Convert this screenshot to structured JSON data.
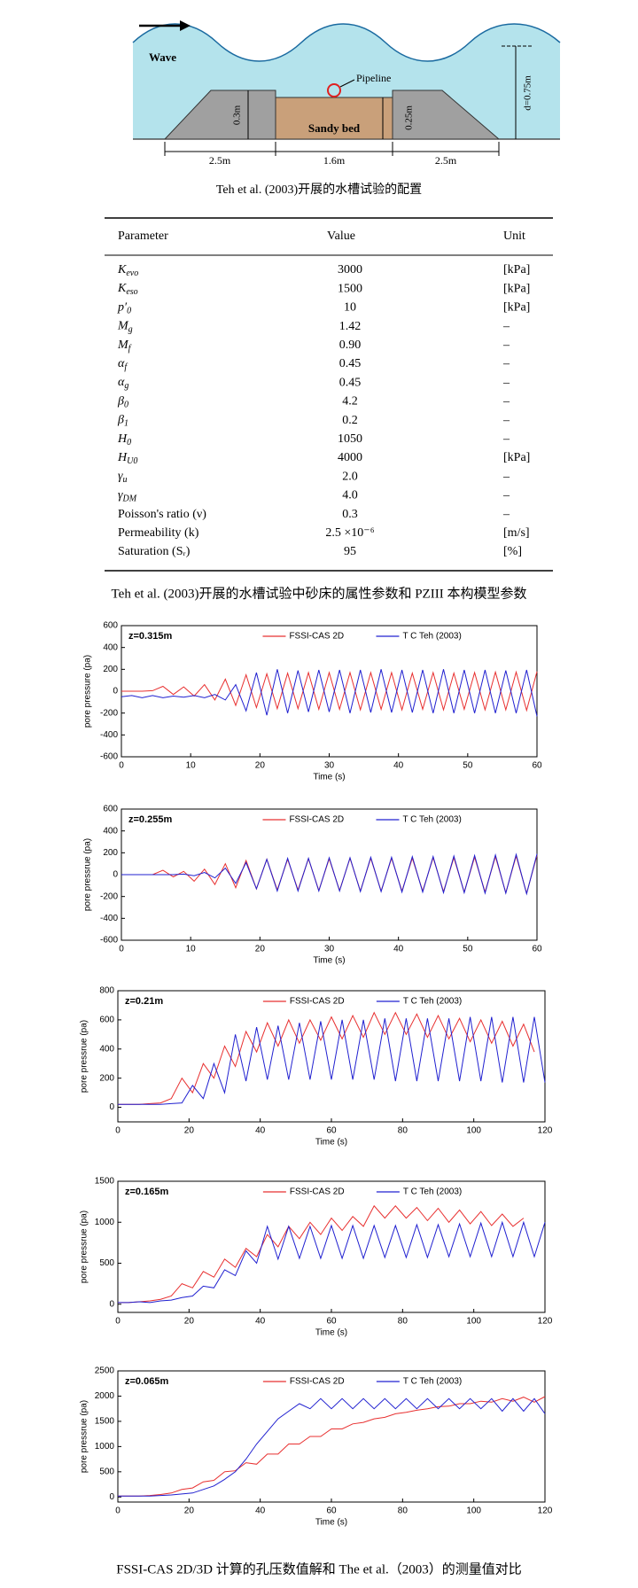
{
  "figure1": {
    "labels": {
      "wave": "Wave",
      "pipeline": "Pipeline",
      "berm_height": "0.3m",
      "bed": "Sandy bed",
      "bed_depth": "0.25m",
      "depth": "d=0.75m",
      "left_width": "2.5m",
      "bed_width": "1.6m",
      "right_width": "2.5m"
    },
    "caption": "Teh et al. (2003)开展的水槽试验的配置"
  },
  "table": {
    "header": [
      "Parameter",
      "Value",
      "Unit"
    ],
    "rows": [
      {
        "symbol": "K",
        "sub": "evo",
        "value": "3000",
        "unit": "[kPa]"
      },
      {
        "symbol": "K",
        "sub": "eso",
        "value": "1500",
        "unit": "[kPa]"
      },
      {
        "symbol": "p′",
        "sub": "0",
        "value": "10",
        "unit": "[kPa]"
      },
      {
        "symbol": "M",
        "sub": "g",
        "value": "1.42",
        "unit": "–"
      },
      {
        "symbol": "M",
        "sub": "f",
        "value": "0.90",
        "unit": "–"
      },
      {
        "symbol": "α",
        "sub": "f",
        "value": "0.45",
        "unit": "–"
      },
      {
        "symbol": "α",
        "sub": "g",
        "value": "0.45",
        "unit": "–"
      },
      {
        "symbol": "β",
        "sub": "0",
        "value": "4.2",
        "unit": "–"
      },
      {
        "symbol": "β",
        "sub": "1",
        "value": "0.2",
        "unit": "–"
      },
      {
        "symbol": "H",
        "sub": "0",
        "value": "1050",
        "unit": "–"
      },
      {
        "symbol": "H",
        "sub": "U0",
        "value": "4000",
        "unit": "[kPa]"
      },
      {
        "symbol": "γ",
        "sub": "u",
        "value": "2.0",
        "unit": "–"
      },
      {
        "symbol": "γ",
        "sub": "DM",
        "value": "4.0",
        "unit": "–"
      },
      {
        "name": "Poisson's ratio (ν)",
        "value": "0.3",
        "unit": "–"
      },
      {
        "name": "Permeability (k)",
        "value": "2.5 ×10⁻⁶",
        "unit": "[m/s]"
      },
      {
        "name": "Saturation (Sᵣ)",
        "value": "95",
        "unit": "[%]"
      }
    ],
    "caption": "Teh et al. (2003)开展的水槽试验中砂床的属性参数和 PZIII 本构模型参数"
  },
  "chart_data": [
    {
      "type": "line",
      "annotation": "z=0.315m",
      "xlabel": "Time  (s)",
      "ylabel": "pore pressure (pa)",
      "x": [
        0,
        1.5,
        3,
        4.5,
        6,
        7.5,
        9,
        10.5,
        12,
        13.5,
        15,
        16.5,
        18,
        19.5,
        21,
        22.5,
        24,
        25.5,
        27,
        28.5,
        30,
        31.5,
        33,
        34.5,
        36,
        37.5,
        39,
        40.5,
        42,
        43.5,
        45,
        46.5,
        48,
        49.5,
        51,
        52.5,
        54,
        55.5,
        57,
        58.5,
        60
      ],
      "series": [
        {
          "name": "FSSI-CAS 2D",
          "color": "#e83030",
          "values": [
            0,
            0,
            0,
            5,
            45,
            -30,
            40,
            -45,
            60,
            -80,
            110,
            -130,
            150,
            -150,
            160,
            -160,
            165,
            -160,
            170,
            -165,
            170,
            -165,
            170,
            -170,
            170,
            -165,
            170,
            -170,
            165,
            -165,
            170,
            -170,
            165,
            -165,
            170,
            -170,
            175,
            -170,
            175,
            -175,
            180
          ]
        },
        {
          "name": "T C Teh (2003)",
          "color": "#2020d0",
          "values": [
            -50,
            -40,
            -60,
            -40,
            -60,
            -45,
            -55,
            -40,
            -60,
            -30,
            -80,
            60,
            -180,
            170,
            -220,
            200,
            -200,
            190,
            -190,
            195,
            -190,
            195,
            -200,
            195,
            -195,
            200,
            -195,
            195,
            -195,
            195,
            -200,
            200,
            -200,
            195,
            -200,
            195,
            -200,
            190,
            -200,
            195,
            -230
          ]
        }
      ],
      "xlim": [
        0,
        60
      ],
      "xticks": [
        0,
        10,
        20,
        30,
        40,
        50,
        60
      ],
      "ylim": [
        -600,
        600
      ],
      "yticks": [
        -600,
        -400,
        -200,
        0,
        200,
        400,
        600
      ]
    },
    {
      "type": "line",
      "annotation": "z=0.255m",
      "xlabel": "Time  (s)",
      "ylabel": "pore pressrue (pa)",
      "x": [
        0,
        1.5,
        3,
        4.5,
        6,
        7.5,
        9,
        10.5,
        12,
        13.5,
        15,
        16.5,
        18,
        19.5,
        21,
        22.5,
        24,
        25.5,
        27,
        28.5,
        30,
        31.5,
        33,
        34.5,
        36,
        37.5,
        39,
        40.5,
        42,
        43.5,
        45,
        46.5,
        48,
        49.5,
        51,
        52.5,
        54,
        55.5,
        57,
        58.5,
        60
      ],
      "series": [
        {
          "name": "FSSI-CAS 2D",
          "color": "#e83030",
          "values": [
            0,
            0,
            0,
            0,
            40,
            -20,
            30,
            -60,
            50,
            -90,
            100,
            -120,
            130,
            -130,
            140,
            -140,
            140,
            -140,
            145,
            -145,
            145,
            -145,
            150,
            -150,
            150,
            -150,
            150,
            -150,
            150,
            -150,
            155,
            -155,
            155,
            -160,
            160,
            -160,
            165,
            -165,
            170,
            -170,
            175
          ]
        },
        {
          "name": "T C Teh (2003)",
          "color": "#2020d0",
          "values": [
            0,
            0,
            0,
            0,
            0,
            0,
            5,
            -10,
            20,
            -30,
            60,
            -80,
            110,
            -130,
            140,
            -150,
            150,
            -150,
            150,
            -150,
            155,
            -150,
            155,
            -155,
            160,
            -155,
            160,
            -160,
            165,
            -160,
            165,
            -165,
            170,
            -165,
            175,
            -170,
            180,
            -170,
            185,
            -175,
            190
          ]
        }
      ],
      "xlim": [
        0,
        60
      ],
      "xticks": [
        0,
        10,
        20,
        30,
        40,
        50,
        60
      ],
      "ylim": [
        -600,
        600
      ],
      "yticks": [
        -600,
        -400,
        -200,
        0,
        200,
        400,
        600
      ]
    },
    {
      "type": "line",
      "annotation": "z=0.21m",
      "xlabel": "Time  (s)",
      "ylabel": "pore pressrue (pa)",
      "x": [
        0,
        3,
        6,
        9,
        12,
        15,
        18,
        21,
        24,
        27,
        30,
        33,
        36,
        39,
        42,
        45,
        48,
        51,
        54,
        57,
        60,
        63,
        66,
        69,
        72,
        75,
        78,
        81,
        84,
        87,
        90,
        93,
        96,
        99,
        102,
        105,
        108,
        111,
        114,
        117,
        120
      ],
      "series": [
        {
          "name": "FSSI-CAS 2D",
          "color": "#e83030",
          "values": [
            20,
            20,
            20,
            25,
            30,
            60,
            200,
            100,
            300,
            200,
            420,
            280,
            520,
            380,
            580,
            420,
            600,
            440,
            600,
            460,
            620,
            470,
            630,
            480,
            650,
            500,
            650,
            500,
            640,
            480,
            630,
            470,
            610,
            450,
            600,
            440,
            590,
            420,
            570,
            380,
            null
          ]
        },
        {
          "name": "T C Teh (2003)",
          "color": "#2020d0",
          "values": [
            20,
            20,
            20,
            20,
            20,
            25,
            30,
            150,
            60,
            300,
            100,
            500,
            180,
            550,
            190,
            560,
            190,
            580,
            190,
            590,
            190,
            600,
            190,
            600,
            190,
            610,
            180,
            610,
            180,
            610,
            180,
            610,
            180,
            620,
            180,
            620,
            170,
            620,
            170,
            620,
            170
          ]
        }
      ],
      "xlim": [
        0,
        120
      ],
      "xticks": [
        0,
        20,
        40,
        60,
        80,
        100,
        120
      ],
      "ylim": [
        -100,
        800
      ],
      "yticks": [
        0,
        200,
        400,
        600,
        800
      ]
    },
    {
      "type": "line",
      "annotation": "z=0.165m",
      "xlabel": "Time  (s)",
      "ylabel": "pore pressrue (pa)",
      "x": [
        0,
        3,
        6,
        9,
        12,
        15,
        18,
        21,
        24,
        27,
        30,
        33,
        36,
        39,
        42,
        45,
        48,
        51,
        54,
        57,
        60,
        63,
        66,
        69,
        72,
        75,
        78,
        81,
        84,
        87,
        90,
        93,
        96,
        99,
        102,
        105,
        108,
        111,
        114,
        117,
        120
      ],
      "series": [
        {
          "name": "FSSI-CAS 2D",
          "color": "#e83030",
          "values": [
            20,
            20,
            30,
            40,
            60,
            100,
            250,
            200,
            400,
            330,
            550,
            450,
            680,
            580,
            850,
            700,
            950,
            800,
            1000,
            850,
            1050,
            900,
            1070,
            950,
            1200,
            1050,
            1200,
            1050,
            1180,
            1020,
            1170,
            1000,
            1150,
            980,
            1130,
            960,
            1100,
            950,
            1050,
            null,
            null
          ]
        },
        {
          "name": "T C Teh (2003)",
          "color": "#2020d0",
          "values": [
            20,
            20,
            30,
            20,
            40,
            50,
            80,
            100,
            220,
            200,
            420,
            350,
            650,
            500,
            950,
            550,
            950,
            560,
            950,
            560,
            960,
            560,
            960,
            560,
            960,
            570,
            960,
            570,
            970,
            570,
            970,
            580,
            980,
            580,
            990,
            580,
            1000,
            580,
            1000,
            580,
            1000
          ]
        }
      ],
      "xlim": [
        0,
        120
      ],
      "xticks": [
        0,
        20,
        40,
        60,
        80,
        100,
        120
      ],
      "ylim": [
        -100,
        1500
      ],
      "yticks": [
        0,
        500,
        1000,
        1500
      ]
    },
    {
      "type": "line",
      "annotation": "z=0.065m",
      "xlabel": "Time  (s)",
      "ylabel": "pore pressrue (pa)",
      "x": [
        0,
        3,
        6,
        9,
        12,
        15,
        18,
        21,
        24,
        27,
        30,
        33,
        36,
        39,
        42,
        45,
        48,
        51,
        54,
        57,
        60,
        63,
        66,
        69,
        72,
        75,
        78,
        81,
        84,
        87,
        90,
        93,
        96,
        99,
        102,
        105,
        108,
        111,
        114,
        117,
        120
      ],
      "series": [
        {
          "name": "FSSI-CAS 2D",
          "color": "#e83030",
          "values": [
            20,
            20,
            20,
            30,
            50,
            80,
            150,
            180,
            300,
            330,
            500,
            520,
            680,
            650,
            850,
            850,
            1050,
            1050,
            1200,
            1200,
            1350,
            1350,
            1450,
            1480,
            1550,
            1580,
            1650,
            1680,
            1720,
            1750,
            1790,
            1800,
            1850,
            1850,
            1900,
            1880,
            1950,
            1900,
            1980,
            1880,
            1990
          ]
        },
        {
          "name": "T C Teh (2003)",
          "color": "#2020d0",
          "values": [
            20,
            20,
            20,
            20,
            30,
            40,
            60,
            80,
            150,
            220,
            350,
            500,
            750,
            1050,
            1300,
            1550,
            1700,
            1850,
            1750,
            1950,
            1750,
            1950,
            1750,
            1950,
            1750,
            1950,
            1750,
            1950,
            1750,
            1950,
            1750,
            1950,
            1750,
            1950,
            1750,
            1950,
            1700,
            1950,
            1700,
            1950,
            1650
          ]
        }
      ],
      "xlim": [
        0,
        120
      ],
      "xticks": [
        0,
        20,
        40,
        60,
        80,
        100,
        120
      ],
      "ylim": [
        -100,
        2500
      ],
      "yticks": [
        0,
        500,
        1000,
        1500,
        2000,
        2500
      ]
    }
  ],
  "caption": "FSSI-CAS 2D/3D 计算的孔压数值解和 The et al.（2003）的测量值对比"
}
